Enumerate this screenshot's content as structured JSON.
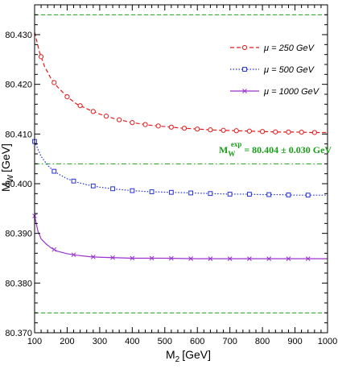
{
  "chart_data": {
    "type": "line",
    "xlabel": "M",
    "xlabel_sub": "2",
    "xlabel_unit": "[GeV]",
    "ylabel": "M",
    "ylabel_sub": "W",
    "ylabel_unit": "[GeV]",
    "xlim": [
      100,
      1000
    ],
    "ylim": [
      80.37,
      80.436
    ],
    "x_ticks": [
      100,
      200,
      300,
      400,
      500,
      600,
      700,
      800,
      900,
      1000
    ],
    "y_ticks": [
      "80.370",
      "80.380",
      "80.390",
      "80.400",
      "80.410",
      "80.420",
      "80.430"
    ],
    "y_tick_values": [
      80.37,
      80.38,
      80.39,
      80.4,
      80.41,
      80.42,
      80.43
    ],
    "series": [
      {
        "name": "μ = 250 GeV",
        "color": "#e41a1c",
        "dash": "dashed",
        "marker": "circle",
        "x": [
          100,
          115,
          130,
          150,
          170,
          200,
          230,
          270,
          300,
          350,
          400,
          450,
          500,
          550,
          600,
          650,
          700,
          750,
          800,
          850,
          900,
          950,
          1000
        ],
        "y": [
          80.4305,
          80.4265,
          80.4237,
          80.4212,
          80.4195,
          80.4175,
          80.416,
          80.4148,
          80.414,
          80.413,
          80.4123,
          80.4118,
          80.4115,
          80.4112,
          80.411,
          80.4108,
          80.4107,
          80.4106,
          80.4105,
          80.4104,
          80.4104,
          80.4103,
          80.4103
        ],
        "marker_x": [
          120,
          160,
          200,
          240,
          280,
          320,
          360,
          400,
          440,
          480,
          520,
          560,
          600,
          640,
          680,
          720,
          760,
          800,
          840,
          880,
          920,
          960
        ]
      },
      {
        "name": "μ = 500 GeV",
        "color": "#2130d6",
        "dash": "dotted",
        "marker": "square",
        "x": [
          100,
          120,
          140,
          160,
          180,
          200,
          230,
          260,
          300,
          350,
          400,
          450,
          500,
          550,
          600,
          650,
          700,
          750,
          800,
          850,
          900,
          950,
          1000
        ],
        "y": [
          80.4085,
          80.4055,
          80.4037,
          80.4025,
          80.4017,
          80.401,
          80.4003,
          80.3998,
          80.3993,
          80.3989,
          80.3986,
          80.3984,
          80.3983,
          80.3982,
          80.3981,
          80.398,
          80.3979,
          80.3979,
          80.3978,
          80.3978,
          80.3977,
          80.3977,
          80.3977
        ],
        "marker_x": [
          100,
          160,
          220,
          280,
          340,
          400,
          460,
          520,
          580,
          640,
          700,
          760,
          820,
          880,
          940
        ]
      },
      {
        "name": "μ = 1000 GeV",
        "color": "#9933cc",
        "dash": "solid",
        "marker": "x",
        "x": [
          100,
          110,
          120,
          135,
          150,
          170,
          200,
          230,
          270,
          300,
          350,
          400,
          450,
          500,
          600,
          700,
          800,
          900,
          1000
        ],
        "y": [
          80.3935,
          80.3905,
          80.3889,
          80.3879,
          80.3871,
          80.3864,
          80.3859,
          80.3856,
          80.3853,
          80.3852,
          80.3851,
          80.385,
          80.385,
          80.385,
          80.3849,
          80.3849,
          80.3849,
          80.3849,
          80.3849
        ],
        "marker_x": [
          100,
          160,
          220,
          280,
          340,
          400,
          460,
          520,
          580,
          640,
          700,
          760,
          820,
          880,
          940
        ]
      }
    ],
    "reference_lines": [
      {
        "y": 80.434,
        "color": "#1a9e1a",
        "style": "dashed"
      },
      {
        "y": 80.404,
        "color": "#1a9e1a",
        "style": "dashdot"
      },
      {
        "y": 80.374,
        "color": "#1a9e1a",
        "style": "dashed"
      }
    ],
    "annotation": {
      "main": "M",
      "sub": "W",
      "sup": "exp",
      "rest": " = 80.404 ± 0.030 GeV",
      "color": "#1a9e1a"
    },
    "legend_placement": "top-right",
    "grid": false
  }
}
